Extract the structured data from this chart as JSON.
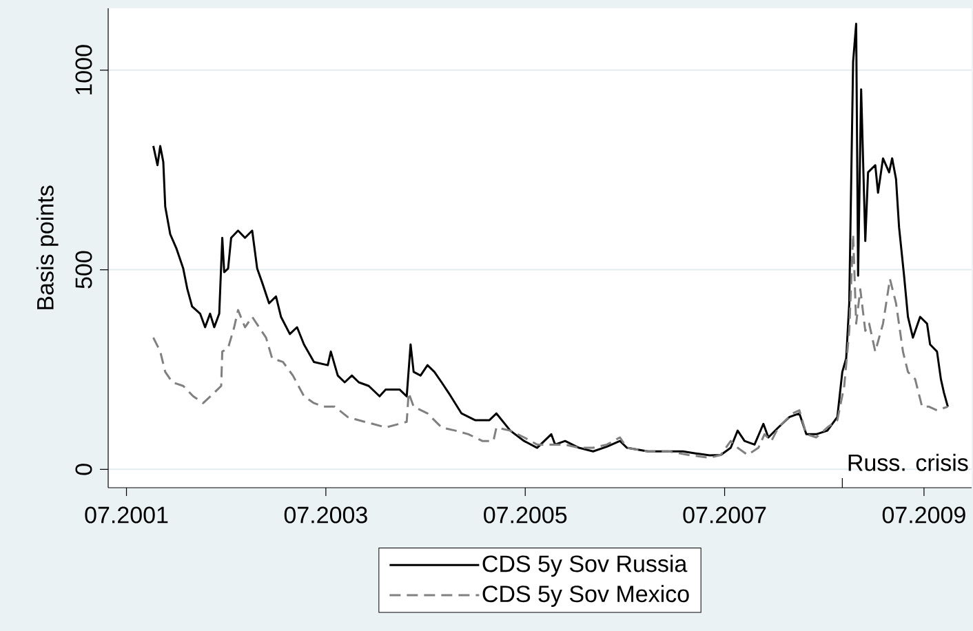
{
  "chart_data": {
    "type": "line",
    "ylabel": "Basis points",
    "xlim": [
      "2001-04-25",
      "2009-12-23"
    ],
    "ylim": [
      -46,
      1155
    ],
    "xticks": [
      {
        "value": "2001-07",
        "label": "07.2001"
      },
      {
        "value": "2003-07",
        "label": "07.2003"
      },
      {
        "value": "2005-07",
        "label": "07.2005"
      },
      {
        "value": "2007-07",
        "label": "07.2007"
      },
      {
        "value": "2009-07",
        "label": "07.2009"
      },
      {
        "value": "2008-09-06",
        "label": null
      }
    ],
    "yticks": [
      0,
      500,
      1000
    ],
    "grid": "y",
    "legend": "bottom",
    "marker": "none",
    "annotations": [
      "Russ. crisis"
    ],
    "series": [
      {
        "name": "CDS 5y Sov Russia",
        "color": "#000000",
        "line_style": "solid",
        "x": [
          "2001-10-08",
          "2001-10-23",
          "2001-11-03",
          "2001-11-14",
          "2001-11-21",
          "2001-12-09",
          "2002-01-01",
          "2002-01-26",
          "2002-02-11",
          "2002-02-28",
          "2002-03-27",
          "2002-04-15",
          "2002-05-03",
          "2002-05-18",
          "2002-06-06",
          "2002-06-17",
          "2002-06-24",
          "2002-07-08",
          "2002-07-19",
          "2002-08-14",
          "2002-09-09",
          "2002-10-05",
          "2002-10-23",
          "2002-11-11",
          "2002-12-06",
          "2003-01-01",
          "2003-01-19",
          "2003-02-21",
          "2003-03-17",
          "2003-04-12",
          "2003-05-18",
          "2003-07-08",
          "2003-07-19",
          "2003-08-14",
          "2003-09-09",
          "2003-10-05",
          "2003-10-30",
          "2003-12-06",
          "2004-01-15",
          "2004-02-07",
          "2004-03-27",
          "2004-04-23",
          "2004-05-07",
          "2004-05-18",
          "2004-06-13",
          "2004-07-08",
          "2004-08-03",
          "2004-08-29",
          "2004-09-24",
          "2004-11-11",
          "2005-01-01",
          "2005-02-21",
          "2005-03-17",
          "2005-05-07",
          "2005-06-27",
          "2005-08-14",
          "2005-10-05",
          "2005-10-19",
          "2005-11-25",
          "2006-01-15",
          "2006-03-06",
          "2006-04-26",
          "2006-06-13",
          "2006-07-08",
          "2006-09-24",
          "2006-11-14",
          "2007-01-30",
          "2007-03-17",
          "2007-05-07",
          "2007-06-17",
          "2007-07-23",
          "2007-08-18",
          "2007-09-13",
          "2007-10-19",
          "2007-11-21",
          "2007-12-09",
          "2008-01-15",
          "2008-02-25",
          "2008-04-01",
          "2008-04-26",
          "2008-06-02",
          "2008-07-12",
          "2008-08-18",
          "2008-09-06",
          "2008-09-20",
          "2008-10-01",
          "2008-10-15",
          "2008-10-26",
          "2008-11-03",
          "2008-11-14",
          "2008-11-29",
          "2008-12-09",
          "2009-01-05",
          "2009-01-15",
          "2009-02-03",
          "2009-02-25",
          "2009-03-06",
          "2009-03-20",
          "2009-04-01",
          "2009-04-19",
          "2009-05-03",
          "2009-05-21",
          "2009-06-17",
          "2009-07-12",
          "2009-07-23",
          "2009-08-18",
          "2009-09-02",
          "2009-09-13",
          "2009-09-27"
        ],
        "values": [
          810,
          762,
          810,
          770,
          658,
          589,
          554,
          503,
          451,
          408,
          390,
          356,
          390,
          356,
          390,
          580,
          494,
          503,
          580,
          598,
          580,
          598,
          503,
          468,
          416,
          433,
          382,
          339,
          356,
          313,
          269,
          261,
          295,
          235,
          218,
          235,
          218,
          209,
          183,
          200,
          200,
          183,
          313,
          244,
          235,
          261,
          244,
          218,
          192,
          140,
          123,
          123,
          140,
          97,
          71,
          54,
          88,
          62,
          71,
          54,
          45,
          57,
          71,
          54,
          45,
          45,
          45,
          40,
          35,
          36,
          54,
          97,
          71,
          62,
          114,
          80,
          105,
          131,
          140,
          88,
          88,
          97,
          131,
          244,
          278,
          416,
          1021,
          1116,
          485,
          952,
          572,
          744,
          762,
          693,
          779,
          744,
          779,
          727,
          606,
          485,
          382,
          330,
          382,
          365,
          313,
          295,
          226,
          192,
          157
        ]
      },
      {
        "name": "CDS 5y Sov Mexico",
        "color": "#808080",
        "line_style": "dashed",
        "x": [
          "2001-10-08",
          "2001-11-03",
          "2001-11-21",
          "2001-12-17",
          "2002-01-26",
          "2002-03-02",
          "2002-04-08",
          "2002-05-18",
          "2002-06-13",
          "2002-06-17",
          "2002-07-08",
          "2002-07-30",
          "2002-08-14",
          "2002-09-09",
          "2002-10-05",
          "2002-10-30",
          "2002-11-25",
          "2002-12-17",
          "2003-01-26",
          "2003-03-02",
          "2003-04-12",
          "2003-05-18",
          "2003-06-24",
          "2003-08-03",
          "2003-09-20",
          "2003-10-30",
          "2003-12-20",
          "2004-02-07",
          "2004-04-23",
          "2004-04-30",
          "2004-05-18",
          "2004-07-08",
          "2004-08-29",
          "2004-10-19",
          "2004-12-06",
          "2005-01-26",
          "2005-03-06",
          "2005-03-17",
          "2005-05-07",
          "2005-06-27",
          "2005-08-14",
          "2005-10-05",
          "2005-11-25",
          "2006-01-15",
          "2006-03-06",
          "2006-04-26",
          "2006-06-13",
          "2006-07-08",
          "2006-09-24",
          "2006-12-09",
          "2007-02-21",
          "2007-05-07",
          "2007-06-17",
          "2007-07-23",
          "2007-08-18",
          "2007-09-24",
          "2007-11-03",
          "2007-11-25",
          "2007-12-20",
          "2008-01-15",
          "2008-03-06",
          "2008-04-01",
          "2008-04-26",
          "2008-06-02",
          "2008-07-12",
          "2008-08-18",
          "2008-09-13",
          "2008-10-01",
          "2008-10-15",
          "2008-10-26",
          "2008-11-11",
          "2008-11-29",
          "2008-12-13",
          "2009-01-05",
          "2009-02-03",
          "2009-02-28",
          "2009-03-20",
          "2009-04-15",
          "2009-05-03",
          "2009-05-29",
          "2009-06-24",
          "2009-07-19",
          "2009-08-18",
          "2009-09-27"
        ],
        "values": [
          330,
          295,
          244,
          218,
          209,
          183,
          166,
          192,
          209,
          295,
          304,
          356,
          399,
          356,
          382,
          356,
          330,
          278,
          269,
          235,
          183,
          166,
          157,
          157,
          131,
          123,
          114,
          105,
          119,
          192,
          157,
          140,
          105,
          97,
          88,
          71,
          71,
          105,
          97,
          80,
          62,
          62,
          62,
          54,
          54,
          62,
          80,
          54,
          45,
          45,
          36,
          29,
          36,
          71,
          54,
          36,
          54,
          88,
          71,
          105,
          140,
          148,
          88,
          80,
          105,
          123,
          209,
          347,
          589,
          365,
          451,
          347,
          365,
          295,
          365,
          477,
          416,
          295,
          244,
          226,
          157,
          157,
          148,
          157
        ]
      }
    ]
  }
}
